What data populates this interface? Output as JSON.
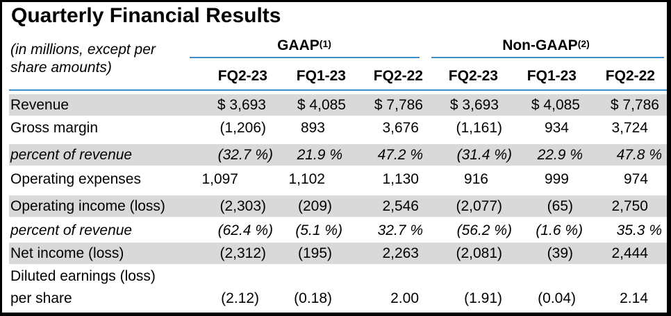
{
  "title": "Quarterly Financial Results",
  "note_line1": "(in millions, except per",
  "note_line2": "share amounts)",
  "groups": [
    {
      "name": "GAAP",
      "sup": "(1)"
    },
    {
      "name": "Non-GAAP",
      "sup": "(2)"
    }
  ],
  "columns": [
    "FQ2-23",
    "FQ1-23",
    "FQ2-22",
    "FQ2-23",
    "FQ1-23",
    "FQ2-22"
  ],
  "rows": [
    {
      "label": "Revenue",
      "values": [
        "$ 3,693",
        "$ 4,085",
        "$ 7,786",
        "$ 3,693",
        "$ 4,085",
        "$ 7,786"
      ]
    },
    {
      "label": "Gross margin",
      "values": [
        "(1,206)",
        "893",
        "3,676",
        "(1,161)",
        "934",
        "3,724"
      ]
    },
    {
      "label": "percent of revenue",
      "values": [
        "(32.7 %)",
        "21.9 %",
        "47.2 %",
        "(31.4 %)",
        "22.9 %",
        "47.8 %"
      ]
    },
    {
      "label": "Operating expenses",
      "values": [
        "1,097",
        "1,102",
        "1,130",
        "916",
        "999",
        "974"
      ]
    },
    {
      "label": "Operating income (loss)",
      "values": [
        "(2,303)",
        "(209)",
        "2,546",
        "(2,077)",
        "(65)",
        "2,750"
      ]
    },
    {
      "label": "percent of revenue",
      "values": [
        "(62.4 %)",
        "(5.1 %)",
        "32.7 %",
        "(56.2 %)",
        "(1.6 %)",
        "35.3 %"
      ]
    },
    {
      "label": "Net income (loss)",
      "values": [
        "(2,312)",
        "(195)",
        "2,263",
        "(2,081)",
        "(39)",
        "2,444"
      ]
    },
    {
      "label_line1": "Diluted earnings (loss)",
      "label_line2": "per share",
      "values": [
        "(2.12)",
        "(0.18)",
        "2.00",
        "(1.91)",
        "(0.04)",
        "2.14"
      ]
    }
  ]
}
